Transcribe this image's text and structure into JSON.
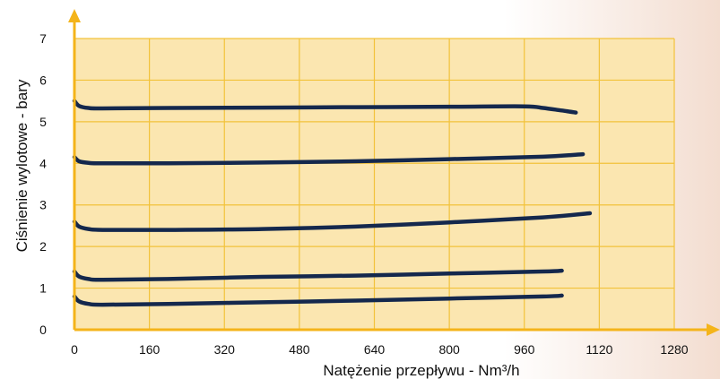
{
  "chart_data": {
    "type": "line",
    "xlabel": "Natężenie przepływu - Nm³/h",
    "ylabel": "Ciśnienie wylotowe - bary",
    "xlim": [
      0,
      1280
    ],
    "ylim": [
      0,
      7
    ],
    "xticks": [
      0,
      160,
      320,
      480,
      640,
      800,
      960,
      1120,
      1280
    ],
    "yticks": [
      0,
      1,
      2,
      3,
      4,
      5,
      6,
      7
    ],
    "grid": true,
    "colors": {
      "plot_background": "#fbe6b0",
      "grid": "#f2c23a",
      "axis": "#f4b41a",
      "series": "#14284d"
    },
    "series": [
      {
        "x": [
          0,
          10,
          30,
          60,
          200,
          400,
          600,
          800,
          1000,
          1040
        ],
        "y": [
          0.8,
          0.68,
          0.62,
          0.6,
          0.62,
          0.66,
          0.7,
          0.75,
          0.8,
          0.82
        ]
      },
      {
        "x": [
          0,
          10,
          30,
          60,
          200,
          400,
          600,
          800,
          1000,
          1040
        ],
        "y": [
          1.4,
          1.28,
          1.22,
          1.2,
          1.22,
          1.27,
          1.3,
          1.35,
          1.4,
          1.42
        ]
      },
      {
        "x": [
          0,
          10,
          30,
          60,
          200,
          400,
          600,
          800,
          1000,
          1100
        ],
        "y": [
          2.6,
          2.48,
          2.42,
          2.4,
          2.4,
          2.42,
          2.48,
          2.58,
          2.7,
          2.8
        ]
      },
      {
        "x": [
          0,
          10,
          30,
          60,
          200,
          400,
          600,
          800,
          1000,
          1085
        ],
        "y": [
          4.15,
          4.05,
          4.01,
          4.0,
          4.0,
          4.02,
          4.05,
          4.1,
          4.16,
          4.22
        ]
      },
      {
        "x": [
          0,
          10,
          30,
          60,
          200,
          400,
          600,
          800,
          960,
          1000,
          1040,
          1070
        ],
        "y": [
          5.5,
          5.38,
          5.33,
          5.32,
          5.33,
          5.34,
          5.35,
          5.36,
          5.37,
          5.33,
          5.27,
          5.22
        ]
      }
    ]
  }
}
